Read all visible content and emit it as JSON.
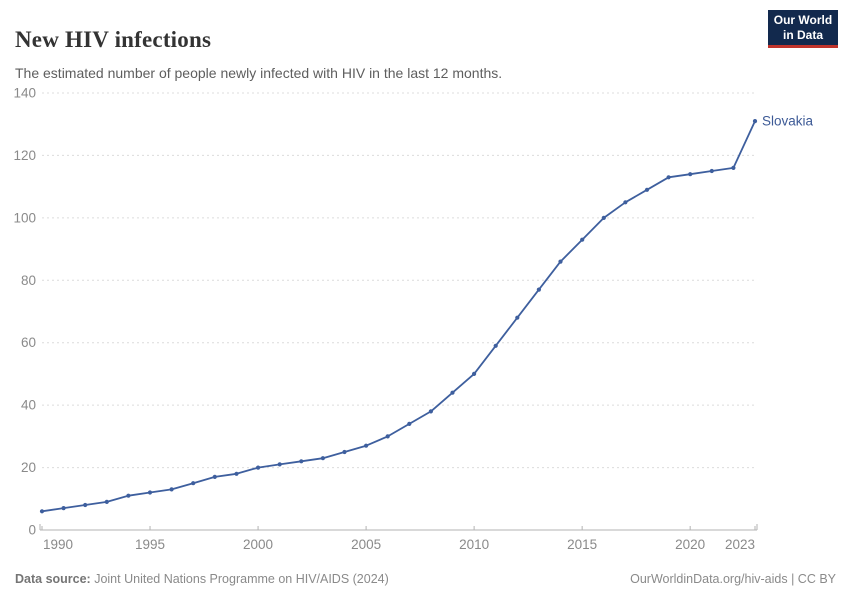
{
  "header": {
    "title": "New HIV infections",
    "subtitle": "The estimated number of people newly infected with HIV in the last 12 months.",
    "logo": {
      "line1": "Our World",
      "line2": "in Data"
    }
  },
  "chart_data": {
    "type": "line",
    "title": "New HIV infections",
    "entity_label": "Slovakia",
    "x": [
      1990,
      1991,
      1992,
      1993,
      1994,
      1995,
      1996,
      1997,
      1998,
      1999,
      2000,
      2001,
      2002,
      2003,
      2004,
      2005,
      2006,
      2007,
      2008,
      2009,
      2010,
      2011,
      2012,
      2013,
      2014,
      2015,
      2016,
      2017,
      2018,
      2019,
      2020,
      2021,
      2022,
      2023
    ],
    "series": [
      {
        "name": "Slovakia",
        "color": "#3e5f9e",
        "values": [
          6,
          7,
          8,
          9,
          11,
          12,
          13,
          15,
          17,
          18,
          20,
          21,
          22,
          23,
          25,
          27,
          30,
          34,
          38,
          44,
          50,
          59,
          68,
          77,
          86,
          93,
          100,
          105,
          109,
          113,
          114,
          115,
          116,
          131
        ]
      }
    ],
    "xlim": [
      1990,
      2023
    ],
    "ylim": [
      0,
      140
    ],
    "xticks": [
      1990,
      1995,
      2000,
      2005,
      2010,
      2015,
      2020,
      2023
    ],
    "yticks": [
      0,
      20,
      40,
      60,
      80,
      100,
      120,
      140
    ],
    "grid": "horizontal-dashed",
    "legend_position": "end-of-line-label",
    "marker": "point-per-year"
  },
  "footer": {
    "source_label": "Data source:",
    "source_text": " Joint United Nations Programme on HIV/AIDS (2024)",
    "right_text": "OurWorldinData.org/hiv-aids | CC BY"
  },
  "colors": {
    "line": "#3e5f9e",
    "entity_label": "#3d5a96",
    "grid": "#dcdcdc",
    "axis": "#b3b3b3",
    "tick_label": "#8a8a8a",
    "logo_bg": "#12294d",
    "logo_accent": "#c0342c"
  }
}
